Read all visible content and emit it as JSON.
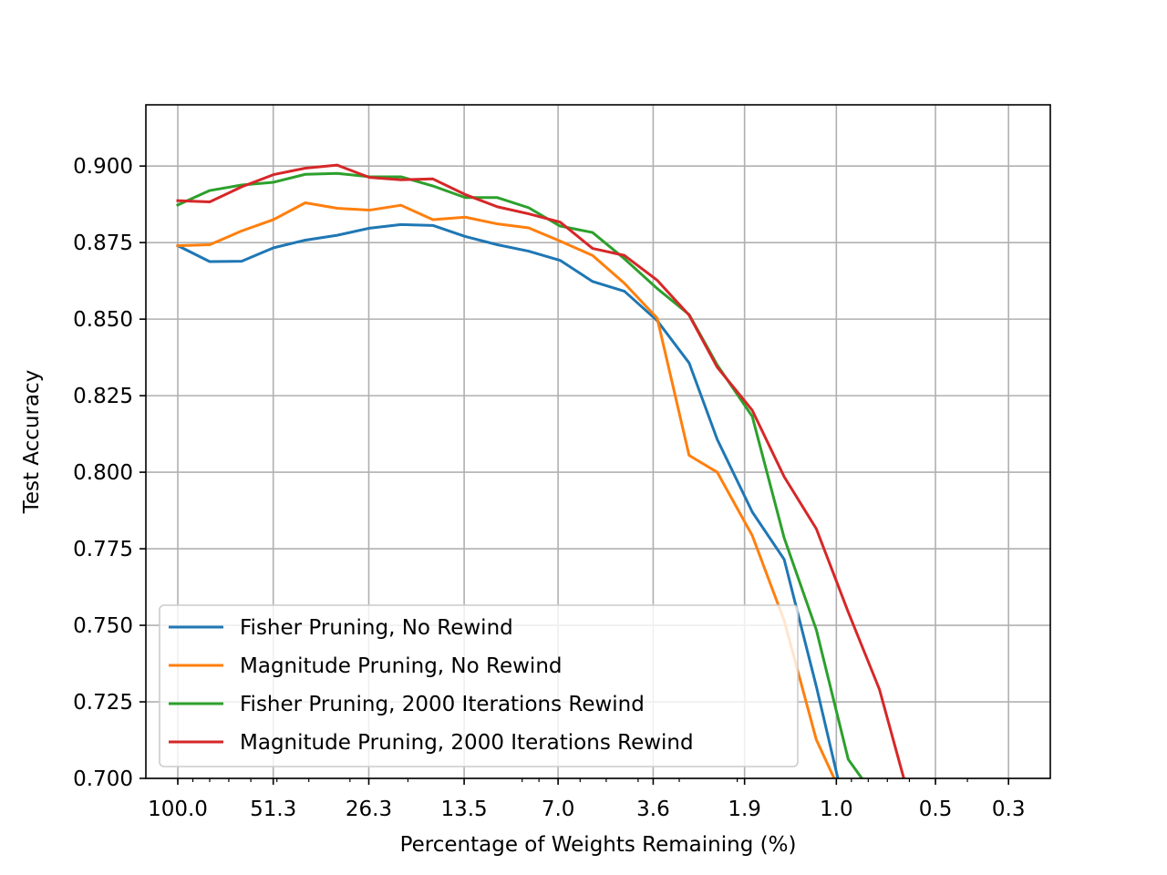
{
  "chart_data": {
    "type": "line",
    "xlabel": "Percentage of Weights Remaining (%)",
    "ylabel": "Test Accuracy",
    "x_scale": "log (ratio 0.8 per pruning round)",
    "xlim": [
      125.0,
      0.224
    ],
    "ylim": [
      0.7,
      0.92
    ],
    "x_ticks": [
      "100.0",
      "51.3",
      "26.3",
      "13.5",
      "7.0",
      "3.6",
      "1.9",
      "1.0",
      "0.5",
      "0.3"
    ],
    "y_ticks": [
      "0.700",
      "0.725",
      "0.750",
      "0.775",
      "0.800",
      "0.825",
      "0.850",
      "0.875",
      "0.900"
    ],
    "grid": true,
    "legend_position": "lower-left",
    "x": [
      100.0,
      80.0,
      64.0,
      51.2,
      41.0,
      32.8,
      26.2,
      21.0,
      16.8,
      13.4,
      10.7,
      8.6,
      6.9,
      5.5,
      4.4,
      3.5,
      2.8,
      2.3,
      1.8,
      1.44,
      1.15,
      0.92,
      0.74,
      0.59,
      0.47
    ],
    "series": [
      {
        "name": "Fisher Pruning, No Rewind",
        "color": "#1f77b4",
        "values": [
          0.874,
          0.8688,
          0.8689,
          0.8733,
          0.8758,
          0.8774,
          0.8797,
          0.8809,
          0.8806,
          0.877,
          0.8743,
          0.8722,
          0.8692,
          0.8623,
          0.8591,
          0.8495,
          0.8357,
          0.8107,
          0.787,
          0.7715,
          0.73,
          0.6855,
          null,
          null,
          null
        ]
      },
      {
        "name": "Magnitude Pruning, No Rewind",
        "color": "#ff7f0e",
        "values": [
          0.874,
          0.8743,
          0.8788,
          0.8825,
          0.888,
          0.8862,
          0.8856,
          0.8872,
          0.8825,
          0.8833,
          0.8811,
          0.8798,
          0.8755,
          0.8708,
          0.8617,
          0.8503,
          0.8055,
          0.8,
          0.7793,
          0.7515,
          0.7126,
          0.69,
          null,
          null,
          null
        ]
      },
      {
        "name": "Fisher Pruning, 2000 Iterations Rewind",
        "color": "#2ca02c",
        "values": [
          0.8873,
          0.892,
          0.8938,
          0.8947,
          0.8973,
          0.8976,
          0.8965,
          0.8965,
          0.8935,
          0.8897,
          0.8897,
          0.8864,
          0.8804,
          0.8783,
          0.8697,
          0.86,
          0.8515,
          0.835,
          0.8182,
          0.7785,
          0.7485,
          0.7062,
          0.692,
          null,
          null
        ]
      },
      {
        "name": "Magnitude Pruning, 2000 Iterations Rewind",
        "color": "#d62728",
        "values": [
          0.8887,
          0.8883,
          0.8932,
          0.8972,
          0.8993,
          0.9003,
          0.8963,
          0.8955,
          0.8958,
          0.8907,
          0.8867,
          0.8844,
          0.8817,
          0.8731,
          0.8708,
          0.8627,
          0.8513,
          0.8343,
          0.8202,
          0.7985,
          0.7815,
          0.7543,
          0.7291,
          0.6905,
          0.67
        ]
      }
    ]
  }
}
